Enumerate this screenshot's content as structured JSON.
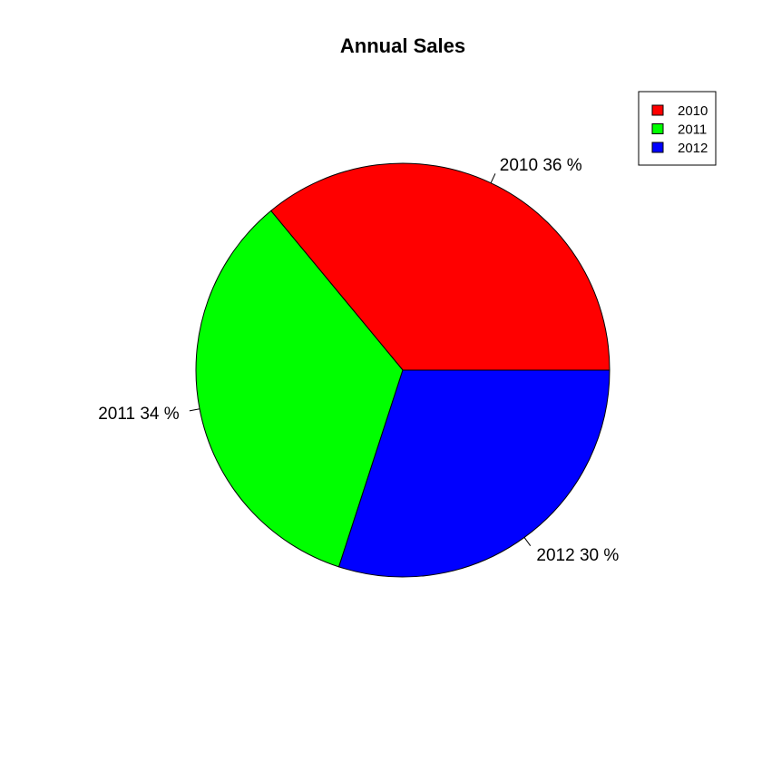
{
  "chart_data": {
    "type": "pie",
    "title": "Annual Sales",
    "slices": [
      {
        "label": "2010",
        "percent": 36,
        "color": "#ff0000",
        "slice_label": "2010 36 %"
      },
      {
        "label": "2011",
        "percent": 34,
        "color": "#00ff00",
        "slice_label": "2011 34 %"
      },
      {
        "label": "2012",
        "percent": 30,
        "color": "#0000ff",
        "slice_label": "2012 30 %"
      }
    ],
    "start_angle_deg": 0,
    "direction": "counterclockwise",
    "legend": {
      "position": "top-right",
      "entries": [
        {
          "label": "2010",
          "color": "#ff0000"
        },
        {
          "label": "2011",
          "color": "#00ff00"
        },
        {
          "label": "2012",
          "color": "#0000ff"
        }
      ]
    }
  }
}
